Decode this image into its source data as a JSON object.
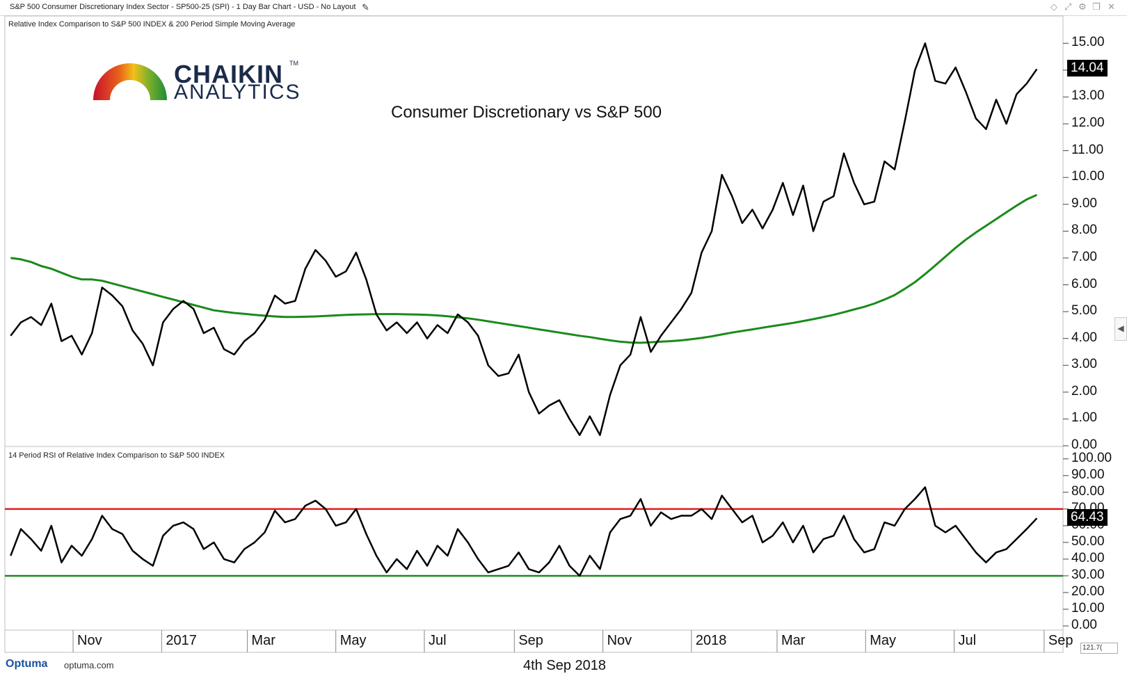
{
  "header": {
    "title": "S&P 500 Consumer Discretionary Index Sector - SP500-25 (SPI) - 1 Day Bar Chart - USD - No Layout",
    "pencil_icon": "pencil-icon",
    "window_icons": [
      "diamond-icon",
      "pin-icon",
      "settings-icon",
      "restore-icon",
      "close-icon"
    ]
  },
  "logo": {
    "word1": "CHAIKIN",
    "tm": "TM",
    "word2": "ANALYTICS"
  },
  "footer": {
    "brand": "Optuma",
    "url": "optuma.com",
    "date": "4th Sep 2018",
    "zoom": "121.7("
  },
  "colors": {
    "price": "#000000",
    "sma": "#1a8a1a",
    "overbought": "#e11b1b",
    "oversold": "#1a8a1a",
    "badge_bg": "#000000"
  },
  "chart_data": [
    {
      "type": "line",
      "panel_title": "Relative Index Comparison to S&P 500 INDEX & 200 Period Simple Moving Average",
      "title": "Consumer Discretionary vs S&P 500",
      "yticks": [
        "15.00",
        "14.00",
        "13.00",
        "12.00",
        "11.00",
        "10.00",
        "9.00",
        "8.00",
        "7.00",
        "6.00",
        "5.00",
        "4.00",
        "3.00",
        "2.00",
        "1.00",
        "0.00"
      ],
      "ylim": [
        0,
        15.5
      ],
      "last_value": "14.04",
      "x": [
        "2016-09-19",
        "2016-09-26",
        "2016-10-03",
        "2016-10-10",
        "2016-10-17",
        "2016-10-24",
        "2016-10-31",
        "2016-11-07",
        "2016-11-14",
        "2016-11-21",
        "2016-11-28",
        "2016-12-05",
        "2016-12-12",
        "2016-12-19",
        "2016-12-26",
        "2017-01-02",
        "2017-01-09",
        "2017-01-16",
        "2017-01-23",
        "2017-01-30",
        "2017-02-06",
        "2017-02-13",
        "2017-02-20",
        "2017-02-27",
        "2017-03-06",
        "2017-03-13",
        "2017-03-20",
        "2017-03-27",
        "2017-04-03",
        "2017-04-10",
        "2017-04-17",
        "2017-04-24",
        "2017-05-01",
        "2017-05-08",
        "2017-05-15",
        "2017-05-22",
        "2017-05-29",
        "2017-06-05",
        "2017-06-12",
        "2017-06-19",
        "2017-06-26",
        "2017-07-03",
        "2017-07-10",
        "2017-07-17",
        "2017-07-24",
        "2017-07-31",
        "2017-08-07",
        "2017-08-14",
        "2017-08-21",
        "2017-08-28",
        "2017-09-04",
        "2017-09-11",
        "2017-09-18",
        "2017-09-25",
        "2017-10-02",
        "2017-10-09",
        "2017-10-16",
        "2017-10-23",
        "2017-10-30",
        "2017-11-06",
        "2017-11-13",
        "2017-11-20",
        "2017-11-27",
        "2017-12-04",
        "2017-12-11",
        "2017-12-18",
        "2017-12-25",
        "2018-01-01",
        "2018-01-08",
        "2018-01-15",
        "2018-01-22",
        "2018-01-29",
        "2018-02-05",
        "2018-02-12",
        "2018-02-19",
        "2018-02-26",
        "2018-03-05",
        "2018-03-12",
        "2018-03-19",
        "2018-03-26",
        "2018-04-02",
        "2018-04-09",
        "2018-04-16",
        "2018-04-23",
        "2018-04-30",
        "2018-05-07",
        "2018-05-14",
        "2018-05-21",
        "2018-05-28",
        "2018-06-04",
        "2018-06-11",
        "2018-06-18",
        "2018-06-25",
        "2018-07-02",
        "2018-07-09",
        "2018-07-16",
        "2018-07-23",
        "2018-07-30",
        "2018-08-06",
        "2018-08-13",
        "2018-08-20",
        "2018-08-27"
      ],
      "series": [
        {
          "name": "Relative Index Comparison to S&P 500 INDEX",
          "values": [
            4.1,
            4.6,
            4.8,
            4.5,
            5.3,
            3.9,
            4.1,
            3.4,
            4.2,
            5.9,
            5.6,
            5.2,
            4.3,
            3.8,
            3.0,
            4.6,
            5.1,
            5.4,
            5.1,
            4.2,
            4.4,
            3.6,
            3.4,
            3.9,
            4.2,
            4.7,
            5.6,
            5.3,
            5.4,
            6.6,
            7.3,
            6.9,
            6.3,
            6.5,
            7.2,
            6.2,
            4.9,
            4.3,
            4.6,
            4.2,
            4.6,
            4.0,
            4.5,
            4.2,
            4.9,
            4.6,
            4.1,
            3.0,
            2.6,
            2.7,
            3.4,
            2.0,
            1.2,
            1.5,
            1.7,
            1.0,
            0.4,
            1.1,
            0.4,
            1.9,
            3.0,
            3.4,
            4.8,
            3.5,
            4.1,
            4.6,
            5.1,
            5.7,
            7.2,
            8.0,
            10.1,
            9.3,
            8.3,
            8.8,
            8.1,
            8.8,
            9.8,
            8.6,
            9.7,
            8.0,
            9.1,
            9.3,
            10.9,
            9.8,
            9.0,
            9.1,
            10.6,
            10.3,
            12.1,
            14.0,
            15.0,
            13.6,
            13.5,
            14.1,
            13.2,
            12.2,
            11.8,
            12.9,
            12.0,
            13.1,
            13.5,
            14.04
          ]
        },
        {
          "name": "200 Period Simple Moving Average",
          "values": [
            7.0,
            6.95,
            6.85,
            6.7,
            6.6,
            6.45,
            6.3,
            6.2,
            6.2,
            6.15,
            6.05,
            5.95,
            5.85,
            5.75,
            5.65,
            5.55,
            5.45,
            5.35,
            5.25,
            5.15,
            5.05,
            5.0,
            4.95,
            4.92,
            4.88,
            4.85,
            4.82,
            4.8,
            4.8,
            4.81,
            4.82,
            4.84,
            4.86,
            4.88,
            4.89,
            4.9,
            4.91,
            4.91,
            4.91,
            4.9,
            4.89,
            4.88,
            4.86,
            4.83,
            4.79,
            4.75,
            4.7,
            4.64,
            4.58,
            4.52,
            4.46,
            4.4,
            4.34,
            4.28,
            4.22,
            4.16,
            4.1,
            4.05,
            3.99,
            3.93,
            3.88,
            3.85,
            3.84,
            3.86,
            3.88,
            3.9,
            3.93,
            3.97,
            4.02,
            4.08,
            4.15,
            4.22,
            4.28,
            4.34,
            4.4,
            4.46,
            4.52,
            4.58,
            4.65,
            4.72,
            4.8,
            4.88,
            4.98,
            5.08,
            5.18,
            5.3,
            5.45,
            5.62,
            5.85,
            6.1,
            6.4,
            6.72,
            7.05,
            7.38,
            7.68,
            7.95,
            8.2,
            8.45,
            8.7,
            8.95,
            9.18,
            9.35
          ]
        }
      ]
    },
    {
      "type": "line",
      "panel_title": "14 Period RSI of Relative Index Comparison to S&P 500 INDEX",
      "yticks": [
        "100.00",
        "90.00",
        "80.00",
        "70.00",
        "60.00",
        "50.00",
        "40.00",
        "30.00",
        "20.00",
        "10.00",
        "0.00"
      ],
      "ylim": [
        0,
        102
      ],
      "last_value": "64.43",
      "levels": [
        70,
        30
      ],
      "series": [
        {
          "name": "14 Period RSI",
          "values": [
            42,
            58,
            52,
            45,
            60,
            38,
            48,
            42,
            52,
            66,
            58,
            55,
            45,
            40,
            36,
            54,
            60,
            62,
            58,
            46,
            50,
            40,
            38,
            46,
            50,
            56,
            69,
            62,
            64,
            72,
            75,
            70,
            60,
            62,
            70,
            55,
            42,
            32,
            40,
            34,
            45,
            36,
            48,
            42,
            58,
            50,
            40,
            32,
            34,
            36,
            44,
            34,
            32,
            38,
            48,
            36,
            30,
            42,
            34,
            56,
            64,
            66,
            76,
            60,
            68,
            64,
            66,
            66,
            70,
            64,
            78,
            70,
            62,
            66,
            50,
            54,
            62,
            50,
            60,
            44,
            52,
            54,
            66,
            52,
            44,
            46,
            62,
            60,
            70,
            76,
            83,
            60,
            56,
            60,
            52,
            44,
            38,
            44,
            46,
            52,
            58,
            64.43
          ]
        }
      ]
    }
  ],
  "xaxis_labels": [
    "Nov",
    "2017",
    "Mar",
    "May",
    "Jul",
    "Sep",
    "Nov",
    "2018",
    "Mar",
    "May",
    "Jul",
    "Sep"
  ]
}
